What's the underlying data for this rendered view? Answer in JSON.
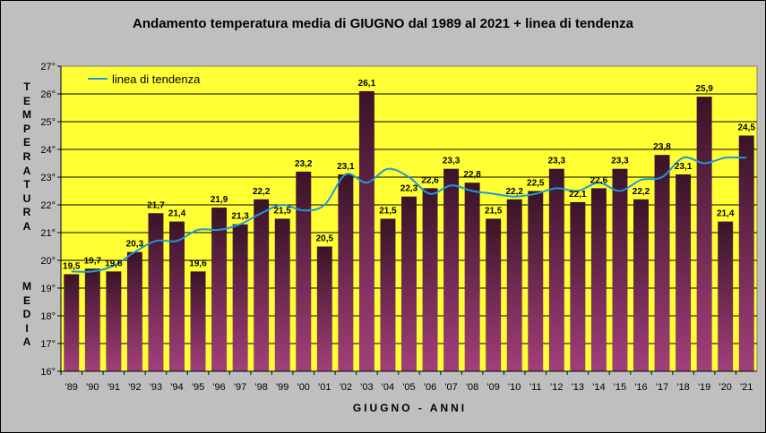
{
  "chart_data": {
    "type": "bar",
    "title": "Andamento temperatura media di GIUGNO dal 1989 al 2021 + linea di tendenza",
    "ylabel_top": "TEMPERATURA",
    "ylabel_bottom": "MEDIA",
    "xlabel": "GIUGNO - ANNI",
    "ylim": [
      16,
      27
    ],
    "yticks": [
      "16°",
      "17°",
      "18°",
      "19°",
      "20°",
      "21°",
      "22°",
      "23°",
      "24°",
      "25°",
      "26°",
      "27°"
    ],
    "grid": "horizontal",
    "legend_position": "top-left",
    "categories": [
      "'89",
      "'90",
      "'91",
      "'92",
      "'93",
      "'94",
      "'95",
      "'96",
      "'97",
      "'98",
      "'99",
      "'00",
      "'01",
      "'02",
      "'03",
      "'04",
      "'05",
      "'06",
      "'07",
      "'08",
      "'09",
      "'10",
      "'11",
      "'12",
      "'13",
      "'14",
      "'15",
      "'16",
      "'17",
      "'18",
      "'19",
      "'20",
      "'21"
    ],
    "values": [
      19.5,
      19.7,
      19.6,
      20.3,
      21.7,
      21.4,
      19.6,
      21.9,
      21.3,
      22.2,
      21.5,
      23.2,
      20.5,
      23.1,
      26.1,
      21.5,
      22.3,
      22.6,
      23.3,
      22.8,
      21.5,
      22.2,
      22.5,
      23.3,
      22.1,
      22.6,
      23.3,
      22.2,
      23.8,
      23.1,
      25.9,
      21.4,
      24.5
    ],
    "data_labels": [
      "19,5",
      "19,7",
      "19,6",
      "20,3",
      "21,7",
      "21,4",
      "19,6",
      "21,9",
      "21,3",
      "22,2",
      "21,5",
      "23,2",
      "20,5",
      "23,1",
      "26,1",
      "21,5",
      "22,3",
      "22,6",
      "23,3",
      "22,8",
      "21,5",
      "22,2",
      "22,5",
      "23,3",
      "22,1",
      "22,6",
      "23,3",
      "22,2",
      "23,8",
      "23,1",
      "25,9",
      "21,4",
      "24,5"
    ],
    "series": [
      {
        "name": "linea di tendenza",
        "type": "line",
        "values": [
          19.6,
          19.6,
          19.8,
          20.3,
          20.7,
          20.7,
          21.1,
          21.1,
          21.3,
          21.7,
          22.0,
          21.8,
          22.0,
          23.1,
          22.8,
          23.3,
          23.0,
          22.4,
          22.7,
          22.5,
          22.4,
          22.3,
          22.4,
          22.6,
          22.5,
          22.8,
          22.5,
          22.9,
          23.0,
          23.7,
          23.5,
          23.7,
          23.7
        ]
      }
    ],
    "colors": {
      "plot_bg": "#ffff33",
      "bar_top": "#3a1428",
      "bar_bottom": "#a23f7b",
      "trend_line": "#1e9ad6",
      "page_bg": "#bfbfbf"
    }
  }
}
